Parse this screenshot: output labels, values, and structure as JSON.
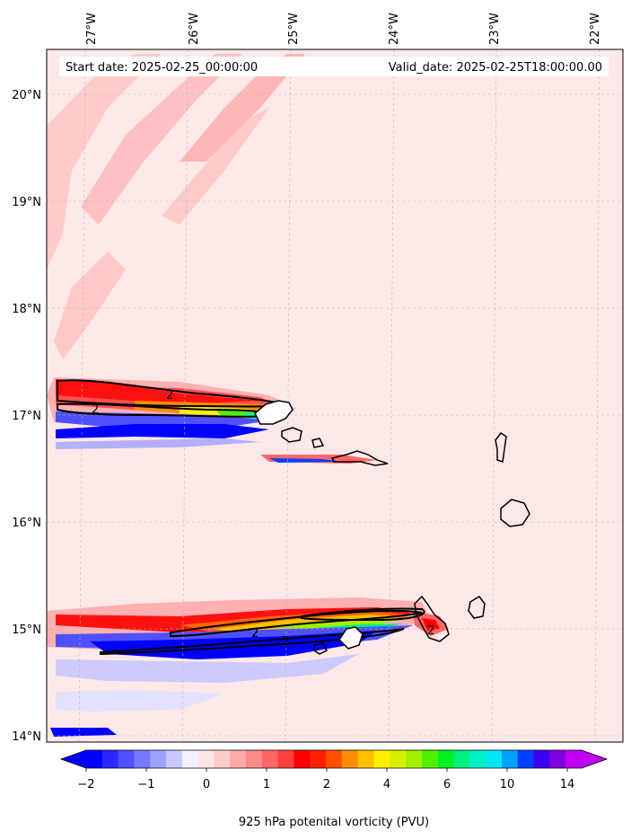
{
  "header": {
    "start_date": "Start date: 2025-02-25_00:00:00",
    "valid_date": "Valid_date: 2025-02-25T18:00:00.00"
  },
  "map": {
    "lon_labels": [
      "27°W",
      "26°W",
      "25°W",
      "24°W",
      "23°W",
      "22°W"
    ],
    "lat_labels": [
      "20°N",
      "19°N",
      "18°N",
      "17°N",
      "16°N",
      "15°N",
      "14°N"
    ],
    "extent": {
      "lon_min": -27.35,
      "lon_max": -21.8,
      "lat_min": 13.95,
      "lat_max": 20.45
    },
    "contour_label": "2",
    "background_color": "#fde8e8"
  },
  "colorbar": {
    "title": "925 hPa potenital vorticity (PVU)",
    "tick_labels": [
      "−2",
      "−1",
      "0",
      "1",
      "2",
      "4",
      "6",
      "10",
      "14"
    ],
    "colors": [
      "#0000ff",
      "#2828ff",
      "#5050ff",
      "#7878ff",
      "#a0a0ff",
      "#c8c8ff",
      "#f0f0ff",
      "#ffe4e4",
      "#ffcccc",
      "#ffaaaa",
      "#ff8888",
      "#ff6666",
      "#ff4040",
      "#ff0000",
      "#ff2000",
      "#ff5000",
      "#ff8c00",
      "#ffc000",
      "#ffee00",
      "#d8f000",
      "#a0f000",
      "#50f000",
      "#00f020",
      "#00f080",
      "#00f0c8",
      "#00e8f8",
      "#00a0ff",
      "#0040ff",
      "#4000f0",
      "#8000e0",
      "#c000f0"
    ],
    "under_color": "#0000ff",
    "over_color": "#c000f0"
  }
}
